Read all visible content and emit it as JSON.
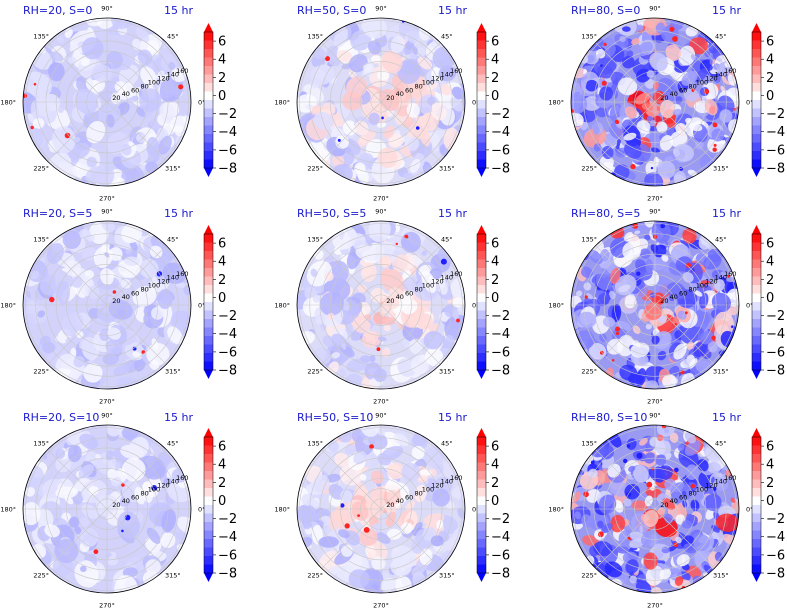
{
  "chart_data": {
    "type": "polar-contour-grid",
    "rows": 3,
    "cols": 3,
    "radial_ticks": [
      "20",
      "40",
      "60",
      "80",
      "100",
      "120",
      "140",
      "160"
    ],
    "angular_ticks": [
      "0°",
      "45°",
      "90°",
      "135°",
      "180°",
      "225°",
      "270°",
      "315°"
    ],
    "colorbar": {
      "ticks": [
        "6",
        "4",
        "2",
        "0",
        "−2",
        "−4",
        "−6",
        "−8"
      ],
      "range": [
        -8,
        7
      ],
      "colors": {
        "positive": "#ff0000",
        "zero": "#ffffff",
        "negative": "#0000ff"
      }
    },
    "panels": [
      {
        "title": "RH=20, S=0",
        "time": "15 hr",
        "rh": 20,
        "s": 0
      },
      {
        "title": "RH=50, S=0",
        "time": "15 hr",
        "rh": 50,
        "s": 0
      },
      {
        "title": "RH=80, S=0",
        "time": "15 hr",
        "rh": 80,
        "s": 0
      },
      {
        "title": "RH=20, S=5",
        "time": "15 hr",
        "rh": 20,
        "s": 5
      },
      {
        "title": "RH=50, S=5",
        "time": "15 hr",
        "rh": 50,
        "s": 5
      },
      {
        "title": "RH=80, S=5",
        "time": "15 hr",
        "rh": 80,
        "s": 5
      },
      {
        "title": "RH=20, S=10",
        "time": "15 hr",
        "rh": 20,
        "s": 10
      },
      {
        "title": "RH=50, S=10",
        "time": "15 hr",
        "rh": 50,
        "s": 10
      },
      {
        "title": "RH=80, S=10",
        "time": "15 hr",
        "rh": 80,
        "s": 10
      }
    ]
  }
}
